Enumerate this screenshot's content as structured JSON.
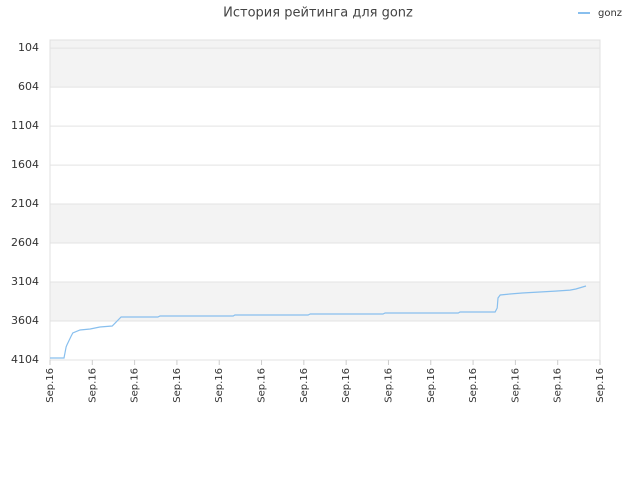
{
  "chart_data": {
    "type": "line",
    "title": "История рейтинга для gonz",
    "x": [
      0,
      0.33,
      0.38,
      0.4,
      0.5,
      0.54,
      0.71,
      0.95,
      1.18,
      1.47,
      1.68,
      2.55,
      2.6,
      4.33,
      4.37,
      6.1,
      6.15,
      7.87,
      7.92,
      9.65,
      9.69,
      10.52,
      10.57,
      10.59,
      10.64,
      10.87,
      11.16,
      11.58,
      11.94,
      12.29,
      12.43,
      12.67
    ],
    "series": [
      {
        "name": "gonz",
        "color": "#88bfee",
        "values": [
          4078,
          4078,
          3937,
          3912,
          3796,
          3758,
          3719,
          3707,
          3681,
          3668,
          3553,
          3553,
          3540,
          3540,
          3527,
          3527,
          3514,
          3514,
          3501,
          3501,
          3489,
          3489,
          3437,
          3309,
          3271,
          3258,
          3245,
          3232,
          3220,
          3207,
          3194,
          3155
        ]
      }
    ],
    "xlim": [
      0,
      13
    ],
    "xticks": [
      {
        "value": 0,
        "label": "Sep.16"
      },
      {
        "value": 1,
        "label": "Sep.16"
      },
      {
        "value": 2,
        "label": "Sep.16"
      },
      {
        "value": 3,
        "label": "Sep.16"
      },
      {
        "value": 4,
        "label": "Sep.16"
      },
      {
        "value": 5,
        "label": "Sep.16"
      },
      {
        "value": 6,
        "label": "Sep.16"
      },
      {
        "value": 7,
        "label": "Sep.16"
      },
      {
        "value": 8,
        "label": "Sep.16"
      },
      {
        "value": 9,
        "label": "Sep.16"
      },
      {
        "value": 10,
        "label": "Sep.16"
      },
      {
        "value": 11,
        "label": "Sep.16"
      },
      {
        "value": 12,
        "label": "Sep.16"
      },
      {
        "value": 13,
        "label": "Sep.16"
      }
    ],
    "ylim": [
      4104,
      0
    ],
    "yticks": [
      104,
      604,
      1104,
      1604,
      2104,
      2604,
      3104,
      3604,
      4104
    ],
    "grid": true,
    "legend": "top-right"
  }
}
